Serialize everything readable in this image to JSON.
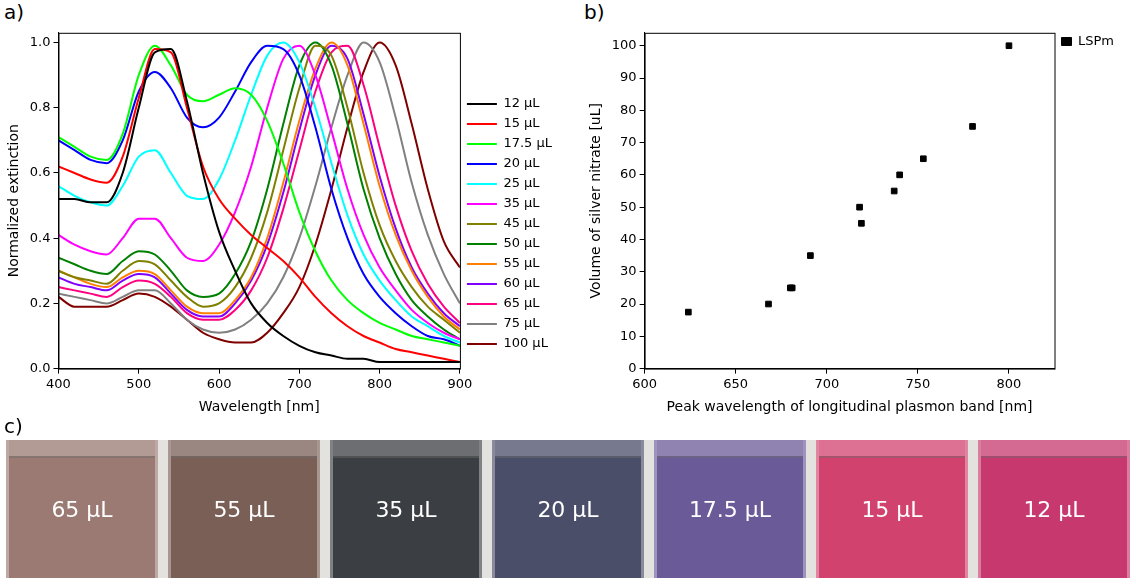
{
  "chart_data": [
    {
      "type": "line",
      "panel_label": "a)",
      "x_label": "Wavelength [nm]",
      "y_label": "Normalized extinction",
      "x": [
        400,
        420,
        440,
        460,
        480,
        500,
        520,
        540,
        560,
        580,
        600,
        620,
        640,
        660,
        680,
        700,
        720,
        740,
        760,
        780,
        800,
        820,
        840,
        860,
        880,
        900
      ],
      "series": [
        {
          "name": "12 µL",
          "color": "#000000",
          "values": [
            0.52,
            0.52,
            0.51,
            0.51,
            0.6,
            0.8,
            0.97,
            0.98,
            0.82,
            0.6,
            0.42,
            0.3,
            0.2,
            0.14,
            0.1,
            0.07,
            0.05,
            0.04,
            0.03,
            0.03,
            0.02,
            0.02,
            0.02,
            0.02,
            0.02,
            0.02
          ]
        },
        {
          "name": "15 µL",
          "color": "#ff0000",
          "values": [
            0.62,
            0.6,
            0.58,
            0.57,
            0.65,
            0.83,
            0.98,
            0.97,
            0.8,
            0.62,
            0.52,
            0.46,
            0.41,
            0.37,
            0.33,
            0.28,
            0.22,
            0.17,
            0.13,
            0.1,
            0.08,
            0.06,
            0.05,
            0.04,
            0.03,
            0.02
          ]
        },
        {
          "name": "17.5 µL",
          "color": "#00ff00",
          "values": [
            0.71,
            0.68,
            0.65,
            0.64,
            0.72,
            0.9,
            0.99,
            0.93,
            0.84,
            0.82,
            0.84,
            0.86,
            0.84,
            0.76,
            0.63,
            0.48,
            0.36,
            0.27,
            0.21,
            0.17,
            0.14,
            0.12,
            0.1,
            0.09,
            0.08,
            0.07
          ]
        },
        {
          "name": "20 µL",
          "color": "#0000ff",
          "values": [
            0.7,
            0.67,
            0.64,
            0.63,
            0.7,
            0.85,
            0.91,
            0.86,
            0.77,
            0.74,
            0.77,
            0.85,
            0.94,
            0.99,
            0.98,
            0.9,
            0.74,
            0.55,
            0.4,
            0.29,
            0.22,
            0.17,
            0.13,
            0.1,
            0.09,
            0.07
          ]
        },
        {
          "name": "25 µL",
          "color": "#00ffff",
          "values": [
            0.56,
            0.53,
            0.51,
            0.5,
            0.56,
            0.65,
            0.67,
            0.6,
            0.53,
            0.52,
            0.58,
            0.7,
            0.84,
            0.96,
            1.0,
            0.94,
            0.8,
            0.63,
            0.47,
            0.35,
            0.27,
            0.21,
            0.16,
            0.13,
            0.1,
            0.08
          ]
        },
        {
          "name": "35 µL",
          "color": "#ff00ff",
          "values": [
            0.41,
            0.38,
            0.36,
            0.35,
            0.4,
            0.46,
            0.46,
            0.4,
            0.34,
            0.33,
            0.38,
            0.48,
            0.62,
            0.8,
            0.95,
            0.99,
            0.9,
            0.73,
            0.55,
            0.41,
            0.31,
            0.24,
            0.18,
            0.14,
            0.11,
            0.09
          ]
        },
        {
          "name": "45 µL",
          "color": "#808000",
          "values": [
            0.3,
            0.28,
            0.27,
            0.26,
            0.3,
            0.33,
            0.32,
            0.27,
            0.22,
            0.19,
            0.2,
            0.25,
            0.34,
            0.48,
            0.67,
            0.86,
            0.99,
            0.96,
            0.8,
            0.6,
            0.44,
            0.33,
            0.25,
            0.19,
            0.15,
            0.11
          ]
        },
        {
          "name": "50 µL",
          "color": "#008000",
          "values": [
            0.34,
            0.32,
            0.3,
            0.29,
            0.33,
            0.36,
            0.35,
            0.3,
            0.24,
            0.22,
            0.23,
            0.29,
            0.39,
            0.55,
            0.75,
            0.93,
            1.0,
            0.93,
            0.75,
            0.55,
            0.4,
            0.29,
            0.21,
            0.16,
            0.12,
            0.09
          ]
        },
        {
          "name": "55 µL",
          "color": "#ff8000",
          "values": [
            0.3,
            0.28,
            0.26,
            0.25,
            0.28,
            0.3,
            0.29,
            0.24,
            0.19,
            0.17,
            0.17,
            0.21,
            0.28,
            0.4,
            0.57,
            0.76,
            0.92,
            1.0,
            0.93,
            0.75,
            0.56,
            0.41,
            0.3,
            0.22,
            0.16,
            0.12
          ]
        },
        {
          "name": "60 µL",
          "color": "#8000ff",
          "values": [
            0.28,
            0.26,
            0.25,
            0.24,
            0.27,
            0.29,
            0.28,
            0.23,
            0.18,
            0.16,
            0.16,
            0.2,
            0.27,
            0.38,
            0.54,
            0.73,
            0.9,
            0.99,
            0.95,
            0.78,
            0.59,
            0.43,
            0.31,
            0.23,
            0.17,
            0.13
          ]
        },
        {
          "name": "65 µL",
          "color": "#ff0080",
          "values": [
            0.25,
            0.24,
            0.23,
            0.22,
            0.25,
            0.27,
            0.26,
            0.22,
            0.17,
            0.15,
            0.15,
            0.18,
            0.24,
            0.34,
            0.49,
            0.67,
            0.85,
            0.97,
            0.99,
            0.87,
            0.68,
            0.5,
            0.36,
            0.26,
            0.19,
            0.14
          ]
        },
        {
          "name": "75 µL",
          "color": "#808080",
          "values": [
            0.23,
            0.22,
            0.21,
            0.2,
            0.22,
            0.24,
            0.24,
            0.2,
            0.15,
            0.12,
            0.11,
            0.12,
            0.15,
            0.2,
            0.28,
            0.4,
            0.56,
            0.74,
            0.9,
            1.0,
            0.94,
            0.77,
            0.57,
            0.41,
            0.29,
            0.2
          ]
        },
        {
          "name": "100 µL",
          "color": "#800000",
          "values": [
            0.22,
            0.19,
            0.19,
            0.19,
            0.21,
            0.23,
            0.22,
            0.19,
            0.15,
            0.11,
            0.09,
            0.08,
            0.08,
            0.11,
            0.17,
            0.25,
            0.38,
            0.55,
            0.74,
            0.91,
            1.0,
            0.93,
            0.75,
            0.55,
            0.39,
            0.31
          ]
        }
      ],
      "xlim": [
        400,
        900
      ],
      "xticks": [
        400,
        500,
        600,
        700,
        800,
        900
      ],
      "ylim": [
        0,
        1.03
      ],
      "yticks": [
        {
          "value": 0,
          "label": "0.0"
        },
        0.2,
        0.4,
        0.6,
        0.8,
        {
          "value": 1,
          "label": "1.0"
        }
      ],
      "grid": false,
      "legend": "right"
    },
    {
      "type": "scatter",
      "panel_label": "b)",
      "x_label": "Peak wavelength of longitudinal plasmon band [nm]",
      "y_label": "Volume of silver nitrate [uL]",
      "x": [
        624,
        668,
        680,
        681,
        691,
        718,
        719,
        737,
        740,
        753,
        780,
        800
      ],
      "series": [
        {
          "name": "LSPm",
          "color": "#000000",
          "marker": "square",
          "values": [
            17.5,
            20,
            25,
            25,
            35,
            50,
            45,
            55,
            60,
            65,
            75,
            100
          ]
        }
      ],
      "xlim": [
        600,
        825
      ],
      "xticks": [
        600,
        650,
        700,
        750,
        800
      ],
      "ylim": [
        0,
        104
      ],
      "yticks": [
        0,
        10,
        20,
        30,
        40,
        50,
        60,
        70,
        80,
        90,
        100
      ],
      "grid": false,
      "legend": "top-right"
    }
  ],
  "panel_c": {
    "panel_label": "c)",
    "vials": [
      {
        "label": "65 µL",
        "color": "#9a7a72"
      },
      {
        "label": "55 µL",
        "color": "#7a5f57"
      },
      {
        "label": "35 µL",
        "color": "#3b3e42"
      },
      {
        "label": "20 µL",
        "color": "#4a4e68"
      },
      {
        "label": "17.5 µL",
        "color": "#6b5a98"
      },
      {
        "label": "15 µL",
        "color": "#d2426f"
      },
      {
        "label": "12 µL",
        "color": "#c6386e"
      }
    ]
  }
}
